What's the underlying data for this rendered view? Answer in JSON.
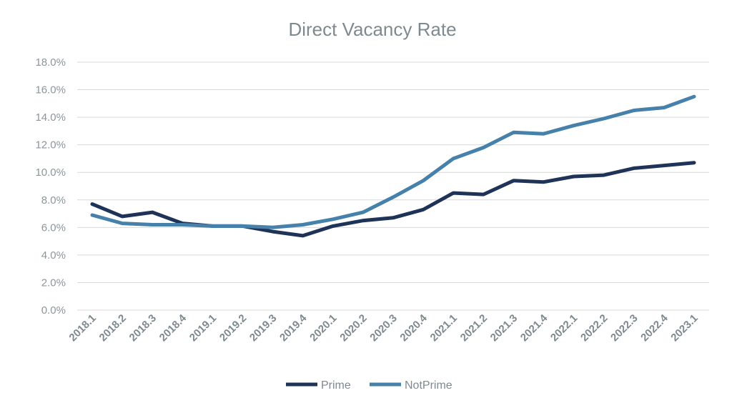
{
  "chart_data": {
    "type": "line",
    "title": "Direct Vacancy Rate",
    "xlabel": "",
    "ylabel": "",
    "categories": [
      "2018.1",
      "2018.2",
      "2018.3",
      "2018.4",
      "2019.1",
      "2019.2",
      "2019.3",
      "2019.4",
      "2020.1",
      "2020.2",
      "2020.3",
      "2020.4",
      "2021.1",
      "2021.2",
      "2021.3",
      "2021.4",
      "2022.1",
      "2022.2",
      "2022.3",
      "2022.4",
      "2023.1"
    ],
    "y_ticks": [
      "0.0%",
      "2.0%",
      "4.0%",
      "6.0%",
      "8.0%",
      "10.0%",
      "12.0%",
      "14.0%",
      "16.0%",
      "18.0%"
    ],
    "ylim": [
      0,
      18
    ],
    "grid": true,
    "legend_position": "bottom",
    "series": [
      {
        "name": "Prime",
        "color": "#1f3359",
        "values": [
          7.7,
          6.8,
          7.1,
          6.3,
          6.1,
          6.1,
          5.7,
          5.4,
          6.1,
          6.5,
          6.7,
          7.3,
          8.5,
          8.4,
          9.4,
          9.3,
          9.7,
          9.8,
          10.3,
          10.5,
          10.7
        ]
      },
      {
        "name": "NotPrime",
        "color": "#4581aa",
        "values": [
          6.9,
          6.3,
          6.2,
          6.2,
          6.1,
          6.1,
          6.0,
          6.2,
          6.6,
          7.1,
          8.2,
          9.4,
          11.0,
          11.8,
          12.9,
          12.8,
          13.4,
          13.9,
          14.5,
          14.7,
          15.5
        ]
      }
    ]
  }
}
